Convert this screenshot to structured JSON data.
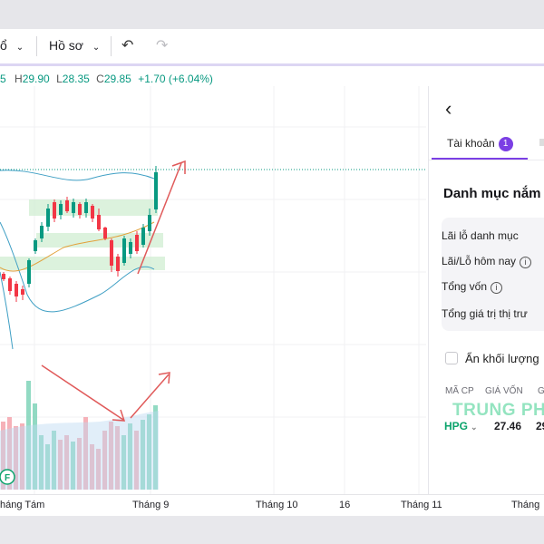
{
  "toolbar": {
    "items": [
      {
        "label": "ổ",
        "icon": "chevron-down-icon"
      },
      {
        "label": "Hồ sơ",
        "icon": "chevron-down-icon"
      }
    ],
    "undo_icon": "undo-icon",
    "redo_icon": "redo-icon"
  },
  "ohlc": {
    "prefix": "5",
    "high_label": "H",
    "high": "29.90",
    "low_label": "L",
    "low": "28.35",
    "close_label": "C",
    "close": "29.85",
    "change": "+1.70 (+6.04%)",
    "color": "#089981"
  },
  "x_axis": {
    "labels": [
      "háng Tám",
      "Tháng 9",
      "Tháng 10",
      "16",
      "Tháng 11",
      "Tháng"
    ]
  },
  "chart": {
    "up_color": "#089981",
    "down_color": "#f23645",
    "marker_letter": "F",
    "annotation_color": "#e05a5a"
  },
  "panel": {
    "back_icon": "chevron-left-icon",
    "tab_label": "Tài khoản",
    "tab_badge": "1",
    "accent": "#7b3fe4",
    "title": "Danh mục nắm",
    "rows": [
      {
        "label": "Lãi lỗ danh mục"
      },
      {
        "label": "Lãi/Lỗ hôm nay"
      },
      {
        "label": "Tổng vốn"
      },
      {
        "label": "Tổng giá trị thị trư"
      }
    ],
    "hide_volume_label": "Ẩn khối lượng",
    "columns": [
      "MÃ CP",
      "GIÁ VỐN",
      "GI"
    ],
    "watermark": "TRUNG PH",
    "holding": {
      "ticker": "HPG",
      "cost": "27.46",
      "price": "29"
    }
  }
}
